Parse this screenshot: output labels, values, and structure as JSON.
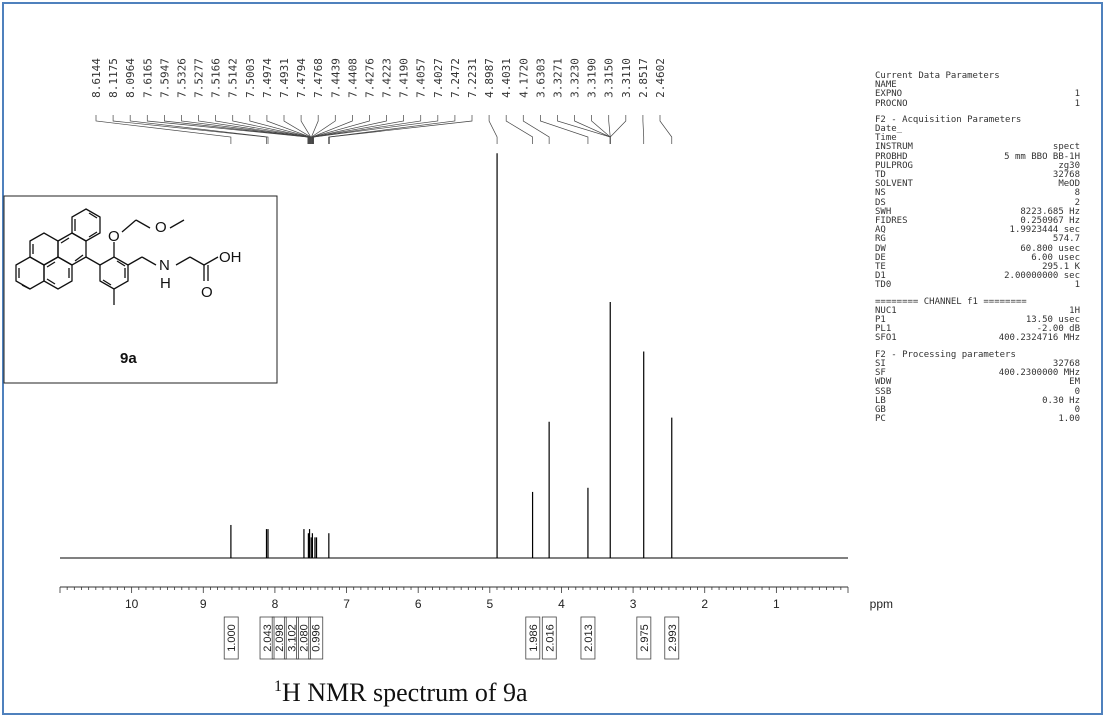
{
  "caption_prefix": "1",
  "caption_main": "H NMR spectrum of 9a",
  "compound_label": "9a",
  "molecule_text": {
    "o_ring": "O",
    "o_ether": "O",
    "nh_n": "N",
    "nh_h": "H",
    "oh": "OH",
    "carbonyl_o": "O"
  },
  "chart_data": {
    "type": "line",
    "xlabel": "ppm",
    "xlim": [
      11,
      0
    ],
    "x_ticks": [
      10,
      9,
      8,
      7,
      6,
      5,
      4,
      3,
      2,
      1
    ],
    "peaks": [
      {
        "ppm": 8.6144,
        "h": 0.08
      },
      {
        "ppm": 8.1175,
        "h": 0.07
      },
      {
        "ppm": 8.0964,
        "h": 0.07
      },
      {
        "ppm": 7.5947,
        "h": 0.07
      },
      {
        "ppm": 7.5326,
        "h": 0.06
      },
      {
        "ppm": 7.5166,
        "h": 0.07
      },
      {
        "ppm": 7.4931,
        "h": 0.05
      },
      {
        "ppm": 7.4768,
        "h": 0.06
      },
      {
        "ppm": 7.4408,
        "h": 0.05
      },
      {
        "ppm": 7.419,
        "h": 0.05
      },
      {
        "ppm": 7.2472,
        "h": 0.06
      },
      {
        "ppm": 4.8987,
        "h": 0.98
      },
      {
        "ppm": 4.4031,
        "h": 0.16
      },
      {
        "ppm": 4.172,
        "h": 0.33
      },
      {
        "ppm": 3.6303,
        "h": 0.17
      },
      {
        "ppm": 3.319,
        "h": 0.62
      },
      {
        "ppm": 2.8517,
        "h": 0.5
      },
      {
        "ppm": 2.4602,
        "h": 0.34
      }
    ],
    "peak_labels": [
      "8.6144",
      "8.1175",
      "8.0964",
      "7.6165",
      "7.5947",
      "7.5326",
      "7.5277",
      "7.5166",
      "7.5142",
      "7.5003",
      "7.4974",
      "7.4931",
      "7.4794",
      "7.4768",
      "7.4439",
      "7.4408",
      "7.4276",
      "7.4223",
      "7.4190",
      "7.4057",
      "7.4027",
      "7.2472",
      "7.2231",
      "4.8987",
      "4.4031",
      "4.1720",
      "3.6303",
      "3.3271",
      "3.3230",
      "3.3190",
      "3.3150",
      "3.3110",
      "2.8517",
      "2.4602"
    ],
    "peak_label_targets": [
      8.6144,
      8.1175,
      8.0964,
      7.54,
      7.54,
      7.53,
      7.53,
      7.52,
      7.52,
      7.51,
      7.51,
      7.5,
      7.5,
      7.49,
      7.49,
      7.48,
      7.48,
      7.47,
      7.47,
      7.46,
      7.46,
      7.25,
      7.24,
      4.8987,
      4.4031,
      4.172,
      3.6303,
      3.319,
      3.319,
      3.319,
      3.319,
      3.319,
      2.8517,
      2.4602
    ],
    "integrals": [
      {
        "label": "1.000",
        "ppm": 8.61
      },
      {
        "label": "2.043",
        "ppm": 8.11
      },
      {
        "label": "2.098",
        "ppm": 7.94
      },
      {
        "label": "3.102",
        "ppm": 7.77
      },
      {
        "label": "2.080",
        "ppm": 7.6
      },
      {
        "label": "0.996",
        "ppm": 7.43
      },
      {
        "label": "1.986",
        "ppm": 4.4
      },
      {
        "label": "2.016",
        "ppm": 4.17
      },
      {
        "label": "2.013",
        "ppm": 3.63
      },
      {
        "label": "2.975",
        "ppm": 2.85
      },
      {
        "label": "2.993",
        "ppm": 2.46
      }
    ]
  },
  "parameters": {
    "current_title": "Current Data Parameters",
    "current_rows": [
      {
        "k": "NAME",
        "v": ""
      },
      {
        "k": "EXPNO",
        "v": "1"
      },
      {
        "k": "PROCNO",
        "v": "1"
      }
    ],
    "acq_title": "F2 - Acquisition Parameters",
    "acq_rows": [
      {
        "k": "Date_",
        "v": ""
      },
      {
        "k": "Time",
        "v": ""
      },
      {
        "k": "INSTRUM",
        "v": "spect"
      },
      {
        "k": "PROBHD",
        "v": "5 mm BBO BB-1H"
      },
      {
        "k": "PULPROG",
        "v": "zg30"
      },
      {
        "k": "TD",
        "v": "32768"
      },
      {
        "k": "SOLVENT",
        "v": "MeOD"
      },
      {
        "k": "NS",
        "v": "8"
      },
      {
        "k": "DS",
        "v": "2"
      },
      {
        "k": "SWH",
        "v": "8223.685 Hz"
      },
      {
        "k": "FIDRES",
        "v": "0.250967 Hz"
      },
      {
        "k": "AQ",
        "v": "1.9923444 sec"
      },
      {
        "k": "RG",
        "v": "574.7"
      },
      {
        "k": "DW",
        "v": "60.800 usec"
      },
      {
        "k": "DE",
        "v": "6.00 usec"
      },
      {
        "k": "TE",
        "v": "295.1 K"
      },
      {
        "k": "D1",
        "v": "2.00000000 sec"
      },
      {
        "k": "TD0",
        "v": "1"
      }
    ],
    "channel_title": "======== CHANNEL f1 ========",
    "channel_rows": [
      {
        "k": "NUC1",
        "v": "1H"
      },
      {
        "k": "P1",
        "v": "13.50 usec"
      },
      {
        "k": "PL1",
        "v": "-2.00 dB"
      },
      {
        "k": "SFO1",
        "v": "400.2324716 MHz"
      }
    ],
    "proc_title": "F2 - Processing parameters",
    "proc_rows": [
      {
        "k": "SI",
        "v": "32768"
      },
      {
        "k": "SF",
        "v": "400.2300000 MHz"
      },
      {
        "k": "WDW",
        "v": "EM"
      },
      {
        "k": "SSB",
        "v": "0"
      },
      {
        "k": "LB",
        "v": "0.30 Hz"
      },
      {
        "k": "GB",
        "v": "0"
      },
      {
        "k": "PC",
        "v": "1.00"
      }
    ]
  }
}
